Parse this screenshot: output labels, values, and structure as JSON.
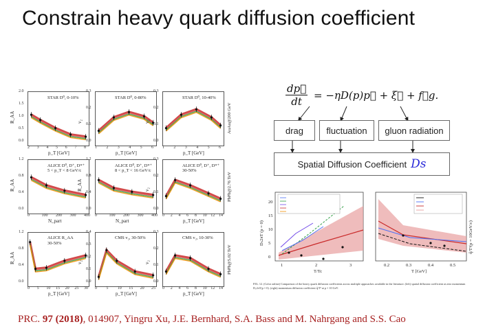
{
  "slide": {
    "title": "Constrain heavy quark diffusion coefficient"
  },
  "left_figure": {
    "rows": [
      {
        "side_label": "AuAu@200 GeV",
        "panels": [
          {
            "label": "STAR D⁰, 0-10%",
            "ylabel": "R_AA",
            "xlabel": "p_T [GeV]",
            "yticks": [
              "2.0",
              "1.5",
              "1.0",
              "0.5",
              "0.0"
            ],
            "xticks": [
              "2",
              "3",
              "4",
              "5",
              "6",
              "7",
              "8"
            ]
          },
          {
            "label": "STAR D⁰, 0-80%",
            "ylabel": "v₂",
            "xlabel": "p_T [GeV]",
            "yticks": [
              "0.3",
              "0.2",
              "0.1",
              "0.0"
            ],
            "xticks": [
              "1",
              "2",
              "3",
              "4",
              "5",
              "6"
            ]
          },
          {
            "label": "STAR D⁰, 10-40%",
            "ylabel": "v₂",
            "xlabel": "p_T [GeV]",
            "yticks": [
              "0.3",
              "0.2",
              "0.1",
              "0.0"
            ],
            "xticks": [
              "1",
              "2",
              "3",
              "4",
              "5",
              "6"
            ]
          }
        ]
      },
      {
        "side_label": "PbPb@2.76 TeV",
        "panels": [
          {
            "label": "ALICE D⁰, D⁺, D*⁺",
            "sublabel": "5 < p_T < 8 GeV/c",
            "ylabel": "R_AA",
            "xlabel": "N_part",
            "yticks": [
              "1.2",
              "0.8",
              "0.4",
              "0.0"
            ],
            "xticks": [
              "0",
              "100",
              "200",
              "300",
              "400"
            ]
          },
          {
            "label": "ALICE D⁰, D⁺, D*⁺",
            "sublabel": "8 < p_T < 16 GeV/c",
            "ylabel": "R_AA",
            "xlabel": "N_part",
            "yticks": [
              "1.2",
              "0.8",
              "0.4",
              "0.0"
            ],
            "xticks": [
              "0",
              "100",
              "200",
              "300",
              "400"
            ]
          },
          {
            "label": "ALICE D⁰, D⁺, D*⁺",
            "sublabel": "30-50%",
            "ylabel": "v₂",
            "xlabel": "p_T [GeV]",
            "yticks": [
              "0.3",
              "0.2",
              "0.1",
              "0.0"
            ],
            "xticks": [
              "0",
              "2",
              "4",
              "6",
              "8",
              "10",
              "12",
              "14"
            ]
          }
        ]
      },
      {
        "side_label": "PbPb@5.02 TeV",
        "panels": [
          {
            "label": "ALICE R_AA",
            "sublabel": "30-50%",
            "ylabel": "R_AA",
            "xlabel": "p_T [GeV]",
            "yticks": [
              "1.2",
              "0.8",
              "0.4",
              "0.0"
            ],
            "xticks": [
              "0",
              "5",
              "10",
              "15",
              "20",
              "25",
              "30"
            ]
          },
          {
            "label": "CMS v₂, 30-50%",
            "ylabel": "v₂",
            "xlabel": "p_T [GeV]",
            "yticks": [
              "0.4",
              "0.3",
              "0.2",
              "0.1",
              "0.0"
            ],
            "xticks": [
              "0",
              "5",
              "10",
              "15",
              "20",
              "25"
            ]
          },
          {
            "label": "CMS v₂, 10-30%",
            "ylabel": "v₂",
            "xlabel": "p_T [GeV]",
            "yticks": [
              "0.3",
              "0.2",
              "0.1",
              "0.0"
            ],
            "xticks": [
              "0",
              "2",
              "4",
              "6",
              "8",
              "10",
              "12",
              "14"
            ]
          }
        ]
      }
    ]
  },
  "equation": {
    "lhs_num": "dp⃗",
    "lhs_den": "dt",
    "rhs": "= −ηD(p)p⃗ + ξ⃗ + f⃗g."
  },
  "flow": {
    "boxes": [
      "drag",
      "fluctuation",
      "gluon radiation"
    ],
    "result_label": "Spatial Diffusion Coefficient",
    "result_symbol": "Ds"
  },
  "right_figure": {
    "left_panel": {
      "ylabel": "Dₛ2πT (p = 0)",
      "xlabel": "T/Tc",
      "xticks": [
        "1",
        "2",
        "3"
      ],
      "yticks": [
        "20",
        "15",
        "10",
        "5",
        "0"
      ]
    },
    "right_panel": {
      "ylabel": "q̂/T³(p = 10GeV/c)",
      "xlabel": "T [GeV]",
      "xticks": [
        "0.2",
        "0.3",
        "0.4",
        "0.5"
      ]
    },
    "caption": "FIG. 12. (Color online) Comparison of the heavy quark diffusion coefficients across multiple approaches available in the literature. (left) spatial diffusion coefficient at zero momentum Dₛ2πT(p = 0). (right) momentum diffusion coefficient q̂/T³ at p = 10 GeV."
  },
  "citation": {
    "prefix": "PRC. ",
    "volume": "97 (2018)",
    "rest": ", 014907,  Yingru Xu, J.E. Bernhard, S.A. Bass and M. Nahrgang and S.S. Cao"
  }
}
